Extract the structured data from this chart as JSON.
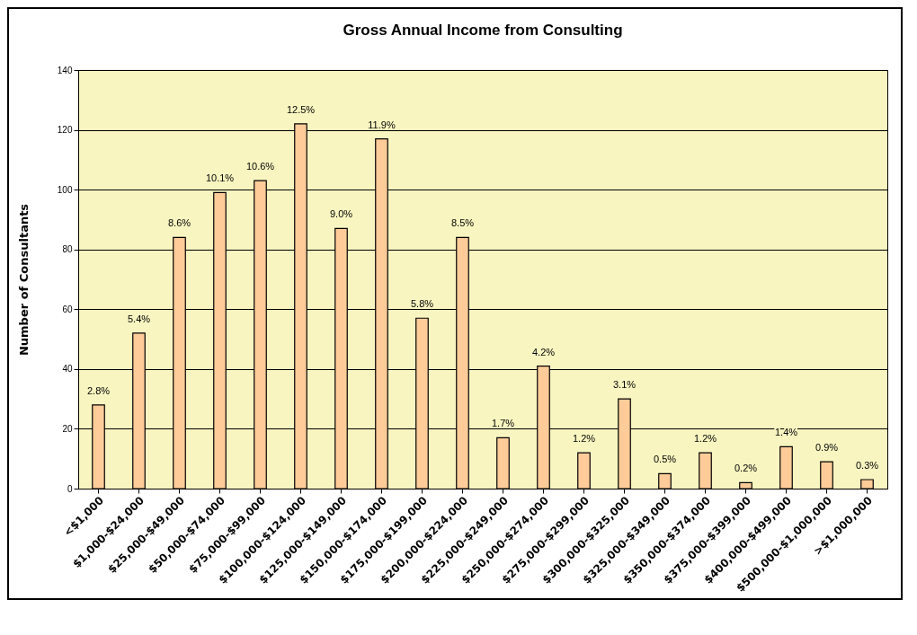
{
  "chart_data": {
    "type": "bar",
    "title": "Gross Annual Income from Consulting",
    "ylabel": "Number of Consultants",
    "categories": [
      "<$1,000",
      "$1,000-$24,000",
      "$25,000-$49,000",
      "$50,000-$74,000",
      "$75,000-$99,000",
      "$100,000-$124,000",
      "$125,000-$149,000",
      "$150,000-$174,000",
      "$175,000-$199,000",
      "$200,000-$224,000",
      "$225,000-$249,000",
      "$250,000-$274,000",
      "$275,000-$299,000",
      "$300,000-$325,000",
      "$325,000-$349,000",
      "$350,000-$374,000",
      "$375,000-$399,000",
      "$400,000-$499,000",
      "$500,000-$1,000,000",
      ">$1,000,000"
    ],
    "values": [
      28,
      52,
      84,
      99,
      103,
      122,
      87,
      117,
      57,
      84,
      17,
      41,
      12,
      30,
      5,
      12,
      2,
      14,
      9,
      3
    ],
    "annotations": [
      {
        "text": "2.8%",
        "x": "<$1,000",
        "y": 28
      },
      {
        "text": "5.4%",
        "x": "$1,000-$24,000",
        "y": 52
      },
      {
        "text": "8.6%",
        "x": "$25,000-$49,000",
        "y": 84
      },
      {
        "text": "10.1%",
        "x": "$50,000-$74,000",
        "y": 99
      },
      {
        "text": "10.6%",
        "x": "$75,000-$99,000",
        "y": 103
      },
      {
        "text": "12.5%",
        "x": "$100,000-$124,000",
        "y": 122
      },
      {
        "text": "9.0%",
        "x": "$125,000-$149,000",
        "y": 87
      },
      {
        "text": "11.9%",
        "x": "$150,000-$174,000",
        "y": 117
      },
      {
        "text": "5.8%",
        "x": "$175,000-$199,000",
        "y": 57
      },
      {
        "text": "8.5%",
        "x": "$200,000-$224,000",
        "y": 84
      },
      {
        "text": "1.7%",
        "x": "$225,000-$249,000",
        "y": 17
      },
      {
        "text": "4.2%",
        "x": "$250,000-$274,000",
        "y": 41
      },
      {
        "text": "1.2%",
        "x": "$275,000-$299,000",
        "y": 12
      },
      {
        "text": "3.1%",
        "x": "$300,000-$325,000",
        "y": 30
      },
      {
        "text": "0.5%",
        "x": "$325,000-$349,000",
        "y": 5
      },
      {
        "text": "1.2%",
        "x": "$350,000-$374,000",
        "y": 12
      },
      {
        "text": "0.2%",
        "x": "$375,000-$399,000",
        "y": 2
      },
      {
        "text": "1.4%",
        "x": "$400,000-$499,000",
        "y": 14
      },
      {
        "text": "0.9%",
        "x": "$500,000-$1,000,000",
        "y": 9
      },
      {
        "text": "0.3%",
        "x": ">$1,000,000",
        "y": 3
      }
    ],
    "color": "#ffcc99",
    "ylim": [
      0,
      140
    ],
    "yticks": [
      0,
      20,
      40,
      60,
      80,
      100,
      120,
      140
    ],
    "grid": "y"
  }
}
